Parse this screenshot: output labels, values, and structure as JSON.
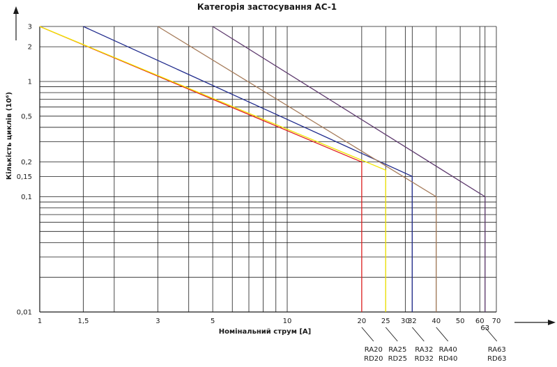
{
  "chart_data": {
    "type": "line",
    "title": "Категорія застосування AC-1",
    "xlabel": "Номінальний струм [A]",
    "ylabel": "Кількість циклів (10⁶)",
    "x_scale": "log",
    "y_scale": "log",
    "xlim": [
      1,
      70
    ],
    "ylim": [
      0.01,
      3
    ],
    "grid": true,
    "x_ticks": [
      {
        "value": 1,
        "label": "1"
      },
      {
        "value": 1.5,
        "label": "1,5"
      },
      {
        "value": 3,
        "label": "3"
      },
      {
        "value": 5,
        "label": "5"
      },
      {
        "value": 10,
        "label": "10"
      },
      {
        "value": 20,
        "label": "20"
      },
      {
        "value": 25,
        "label": "25"
      },
      {
        "value": 30,
        "label": "30"
      },
      {
        "value": 32,
        "label": "32"
      },
      {
        "value": 40,
        "label": "40"
      },
      {
        "value": 50,
        "label": "50"
      },
      {
        "value": 60,
        "label": "60"
      },
      {
        "value": 63,
        "label": "63"
      },
      {
        "value": 70,
        "label": "70"
      }
    ],
    "y_ticks": [
      {
        "value": 3,
        "label": "3"
      },
      {
        "value": 2,
        "label": "2"
      },
      {
        "value": 1,
        "label": "1"
      },
      {
        "value": 0.5,
        "label": "0,5"
      },
      {
        "value": 0.2,
        "label": "0,2"
      },
      {
        "value": 0.15,
        "label": "0,15"
      },
      {
        "value": 0.1,
        "label": "0,1"
      },
      {
        "value": 0.01,
        "label": "0,01"
      }
    ],
    "series": [
      {
        "name": "RA20 RD20",
        "color": "#e02020",
        "x": [
          1,
          20,
          20
        ],
        "y": [
          3,
          0.2,
          0.01
        ]
      },
      {
        "name": "RA25 RD25",
        "color": "#f2e600",
        "x": [
          1,
          25,
          25
        ],
        "y": [
          3,
          0.17,
          0.01
        ]
      },
      {
        "name": "RA32 RD32",
        "color": "#1f2a8c",
        "x": [
          1.5,
          32,
          32
        ],
        "y": [
          3,
          0.15,
          0.01
        ]
      },
      {
        "name": "RA40 RD40",
        "color": "#a67c5b",
        "x": [
          3,
          40,
          40
        ],
        "y": [
          3,
          0.1,
          0.01
        ]
      },
      {
        "name": "RA63 RD63",
        "color": "#5e3a6e",
        "x": [
          5,
          63,
          63
        ],
        "y": [
          3,
          0.1,
          0.01
        ]
      }
    ],
    "callouts": [
      {
        "x": 20,
        "line1": "RA20",
        "line2": "RD20"
      },
      {
        "x": 25,
        "line1": "RA25",
        "line2": "RD25"
      },
      {
        "x": 32,
        "line1": "RA32",
        "line2": "RD32"
      },
      {
        "x": 40,
        "line1": "RA40",
        "line2": "RD40"
      },
      {
        "x": 63,
        "line1": "RA63",
        "line2": "RD63"
      }
    ]
  }
}
